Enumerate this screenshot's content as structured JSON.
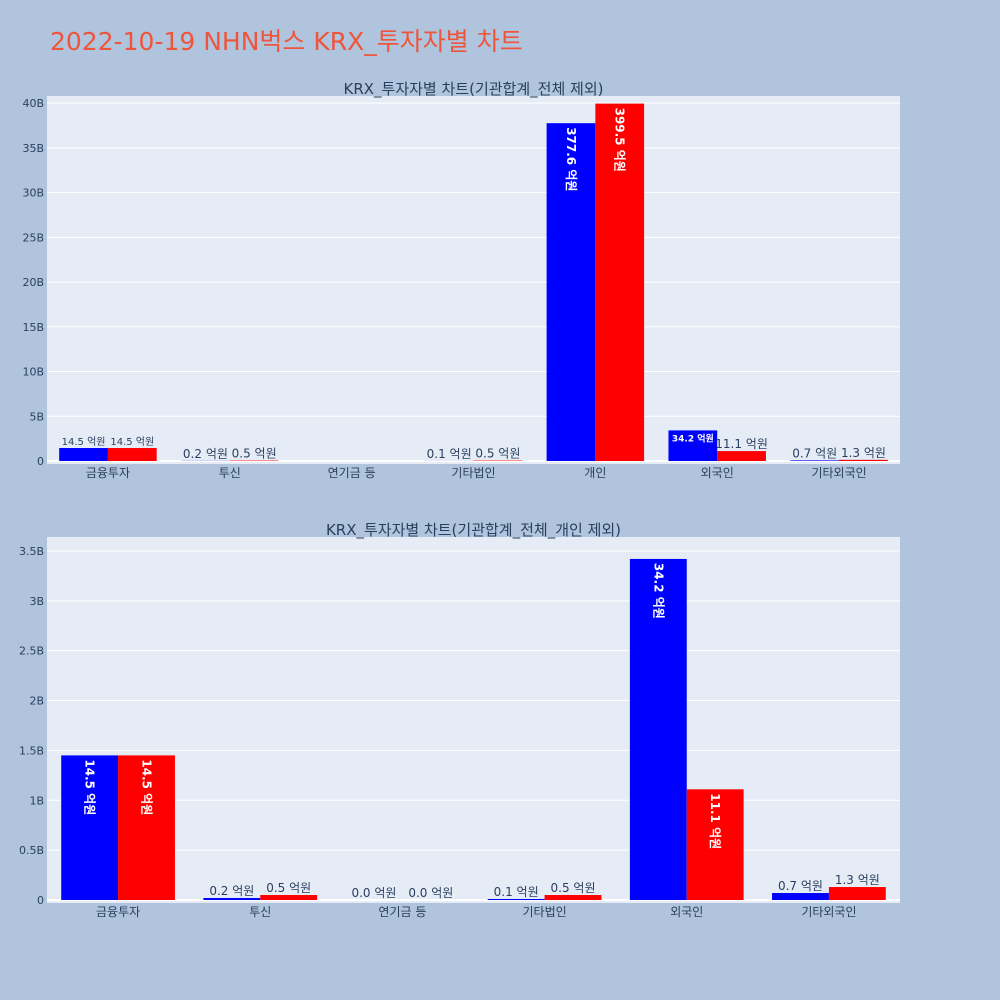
{
  "page_title": "2022-10-19 NHN벅스 KRX_투자자별 차트",
  "colors": {
    "page_bg": "#b0c4de",
    "plot_bg": "#e5ecf6",
    "title": "#ef553b",
    "text": "#2a3f5f",
    "series_buy": "#0000ff",
    "series_sell": "#ff0000"
  },
  "chart_data": [
    {
      "type": "bar",
      "title": "KRX_투자자별 차트(기관합계_전체 제외)",
      "categories": [
        "금융투자",
        "투신",
        "연기금 등",
        "기타법인",
        "개인",
        "외국인",
        "기타외국인"
      ],
      "series": [
        {
          "color": "#0000ff",
          "values": [
            1450000000,
            20000000,
            0,
            10000000,
            37760000000,
            3420000000,
            70000000
          ],
          "labels": [
            "14.5 억원",
            "0.2 억원",
            "",
            "0.1 억원",
            "377.6 억원",
            "34.2 억원",
            "0.7 억원"
          ]
        },
        {
          "color": "#ff0000",
          "values": [
            1450000000,
            50000000,
            0,
            50000000,
            39950000000,
            1110000000,
            130000000
          ],
          "labels": [
            "14.5 억원",
            "0.5 억원",
            "",
            "0.5 억원",
            "399.5 억원",
            "11.1 억원",
            "1.3 억원"
          ]
        }
      ],
      "ylim": [
        0,
        40800000000
      ],
      "yticks": [
        0,
        5000000000,
        10000000000,
        15000000000,
        20000000000,
        25000000000,
        30000000000,
        35000000000,
        40000000000
      ],
      "ytick_labels": [
        "0",
        "5B",
        "10B",
        "15B",
        "20B",
        "25B",
        "30B",
        "35B",
        "40B"
      ],
      "grid": true
    },
    {
      "type": "bar",
      "title": "KRX_투자자별 차트(기관합계_전체_개인 제외)",
      "categories": [
        "금융투자",
        "투신",
        "연기금 등",
        "기타법인",
        "외국인",
        "기타외국인"
      ],
      "series": [
        {
          "color": "#0000ff",
          "values": [
            1450000000,
            20000000,
            0,
            10000000,
            3420000000,
            70000000
          ],
          "labels": [
            "14.5 억원",
            "0.2 억원",
            "0.0 억원",
            "0.1 억원",
            "34.2 억원",
            "0.7 억원"
          ]
        },
        {
          "color": "#ff0000",
          "values": [
            1450000000,
            50000000,
            0,
            50000000,
            1110000000,
            130000000
          ],
          "labels": [
            "14.5 억원",
            "0.5 억원",
            "0.0 억원",
            "0.5 억원",
            "11.1 억원",
            "1.3 억원"
          ]
        }
      ],
      "ylim": [
        0,
        3640000000
      ],
      "yticks": [
        0,
        500000000,
        1000000000,
        1500000000,
        2000000000,
        2500000000,
        3000000000,
        3500000000
      ],
      "ytick_labels": [
        "0",
        "0.5B",
        "1B",
        "1.5B",
        "2B",
        "2.5B",
        "3B",
        "3.5B"
      ],
      "grid": true
    }
  ]
}
